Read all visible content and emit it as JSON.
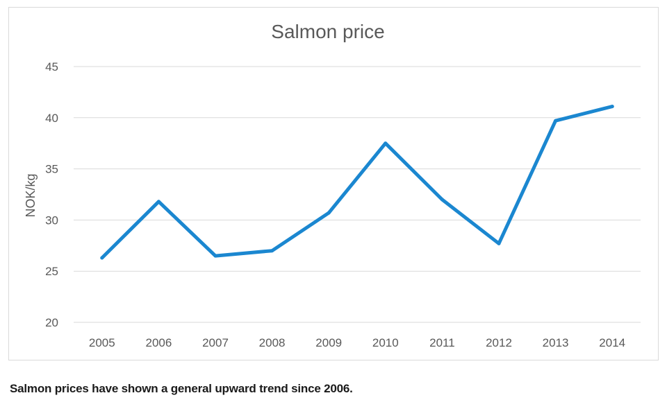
{
  "chart_data": {
    "type": "line",
    "title": "Salmon price",
    "xlabel": "",
    "ylabel": "NOK/kg",
    "categories": [
      "2005",
      "2006",
      "2007",
      "2008",
      "2009",
      "2010",
      "2011",
      "2012",
      "2013",
      "2014"
    ],
    "series": [
      {
        "name": "Salmon price",
        "values": [
          26.3,
          31.8,
          26.5,
          27.0,
          30.7,
          37.5,
          32.0,
          27.7,
          39.7,
          41.1
        ]
      }
    ],
    "ylim": [
      20,
      45
    ],
    "yticks": [
      "20",
      "25",
      "30",
      "35",
      "40",
      "45"
    ],
    "grid": true,
    "color": "#1b87d0"
  },
  "caption": "Salmon prices have shown a general upward trend since 2006."
}
